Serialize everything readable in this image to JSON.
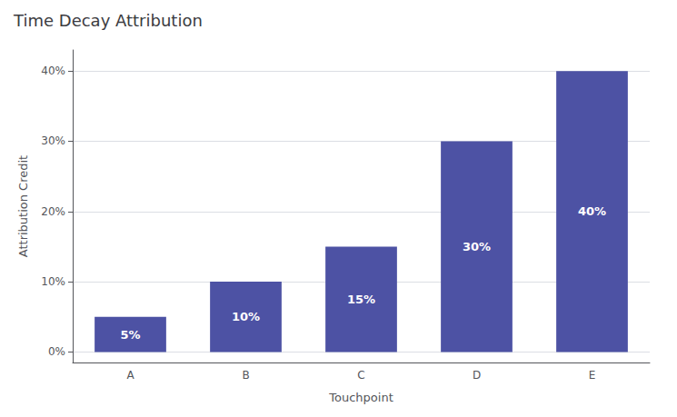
{
  "chart_data": {
    "type": "bar",
    "title": "Time Decay Attribution",
    "xlabel": "Touchpoint",
    "ylabel": "Attribution Credit",
    "categories": [
      "A",
      "B",
      "C",
      "D",
      "E"
    ],
    "values": [
      5,
      10,
      15,
      30,
      40
    ],
    "value_labels": [
      "5%",
      "10%",
      "15%",
      "30%",
      "40%"
    ],
    "data_labels": true,
    "color": "#4d52a4",
    "ylim": [
      -1.5,
      43
    ],
    "yticks": [
      {
        "value": 0,
        "label": "0%"
      },
      {
        "value": 10,
        "label": "10%"
      },
      {
        "value": 20,
        "label": "20%"
      },
      {
        "value": 30,
        "label": "30%"
      },
      {
        "value": 40,
        "label": "40%"
      }
    ],
    "grid": true
  }
}
